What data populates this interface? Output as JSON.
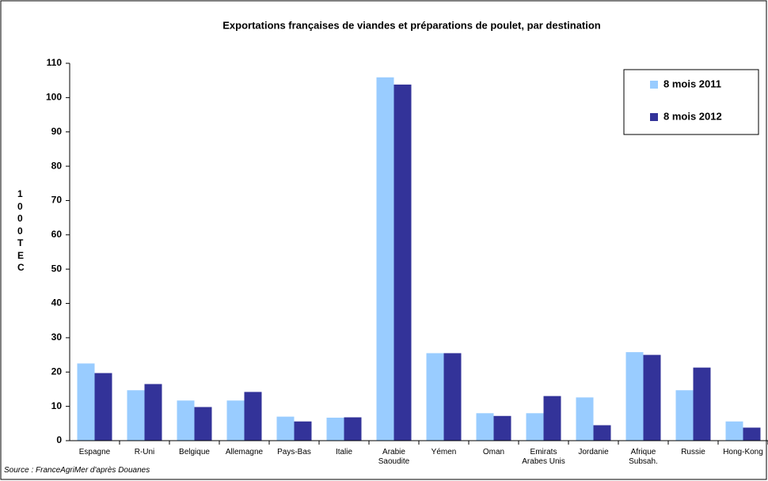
{
  "chart_data": {
    "type": "bar",
    "title": "Exportations françaises de viandes et préparations de poulet, par destination",
    "y_label": "1000 TEC",
    "source": "Source : FranceAgriMer d'après Douanes",
    "categories": [
      "Espagne",
      "R-Uni",
      "Belgique",
      "Allemagne",
      "Pays-Bas",
      "Italie",
      "Arabie\nSaoudite",
      "Yémen",
      "Oman",
      "Emirats\nArabes Unis",
      "Jordanie",
      "Afrique\nSubsah.",
      "Russie",
      "Hong-Kong"
    ],
    "series": [
      {
        "name": "8 mois 2011",
        "color": "#99ccff",
        "values": [
          22.5,
          14.7,
          11.7,
          11.7,
          7.0,
          6.7,
          105.9,
          25.5,
          8.0,
          8.0,
          12.6,
          25.8,
          14.7,
          5.6
        ]
      },
      {
        "name": "8 mois 2012",
        "color": "#333399",
        "values": [
          19.7,
          16.5,
          9.8,
          14.2,
          5.6,
          6.8,
          103.8,
          25.5,
          7.2,
          13.0,
          4.5,
          25.0,
          21.3,
          3.8
        ]
      }
    ],
    "ylim": [
      0,
      110
    ],
    "yticks": [
      0,
      10,
      20,
      30,
      40,
      50,
      60,
      70,
      80,
      90,
      100,
      110
    ],
    "grid": false,
    "legend": "top-right"
  }
}
